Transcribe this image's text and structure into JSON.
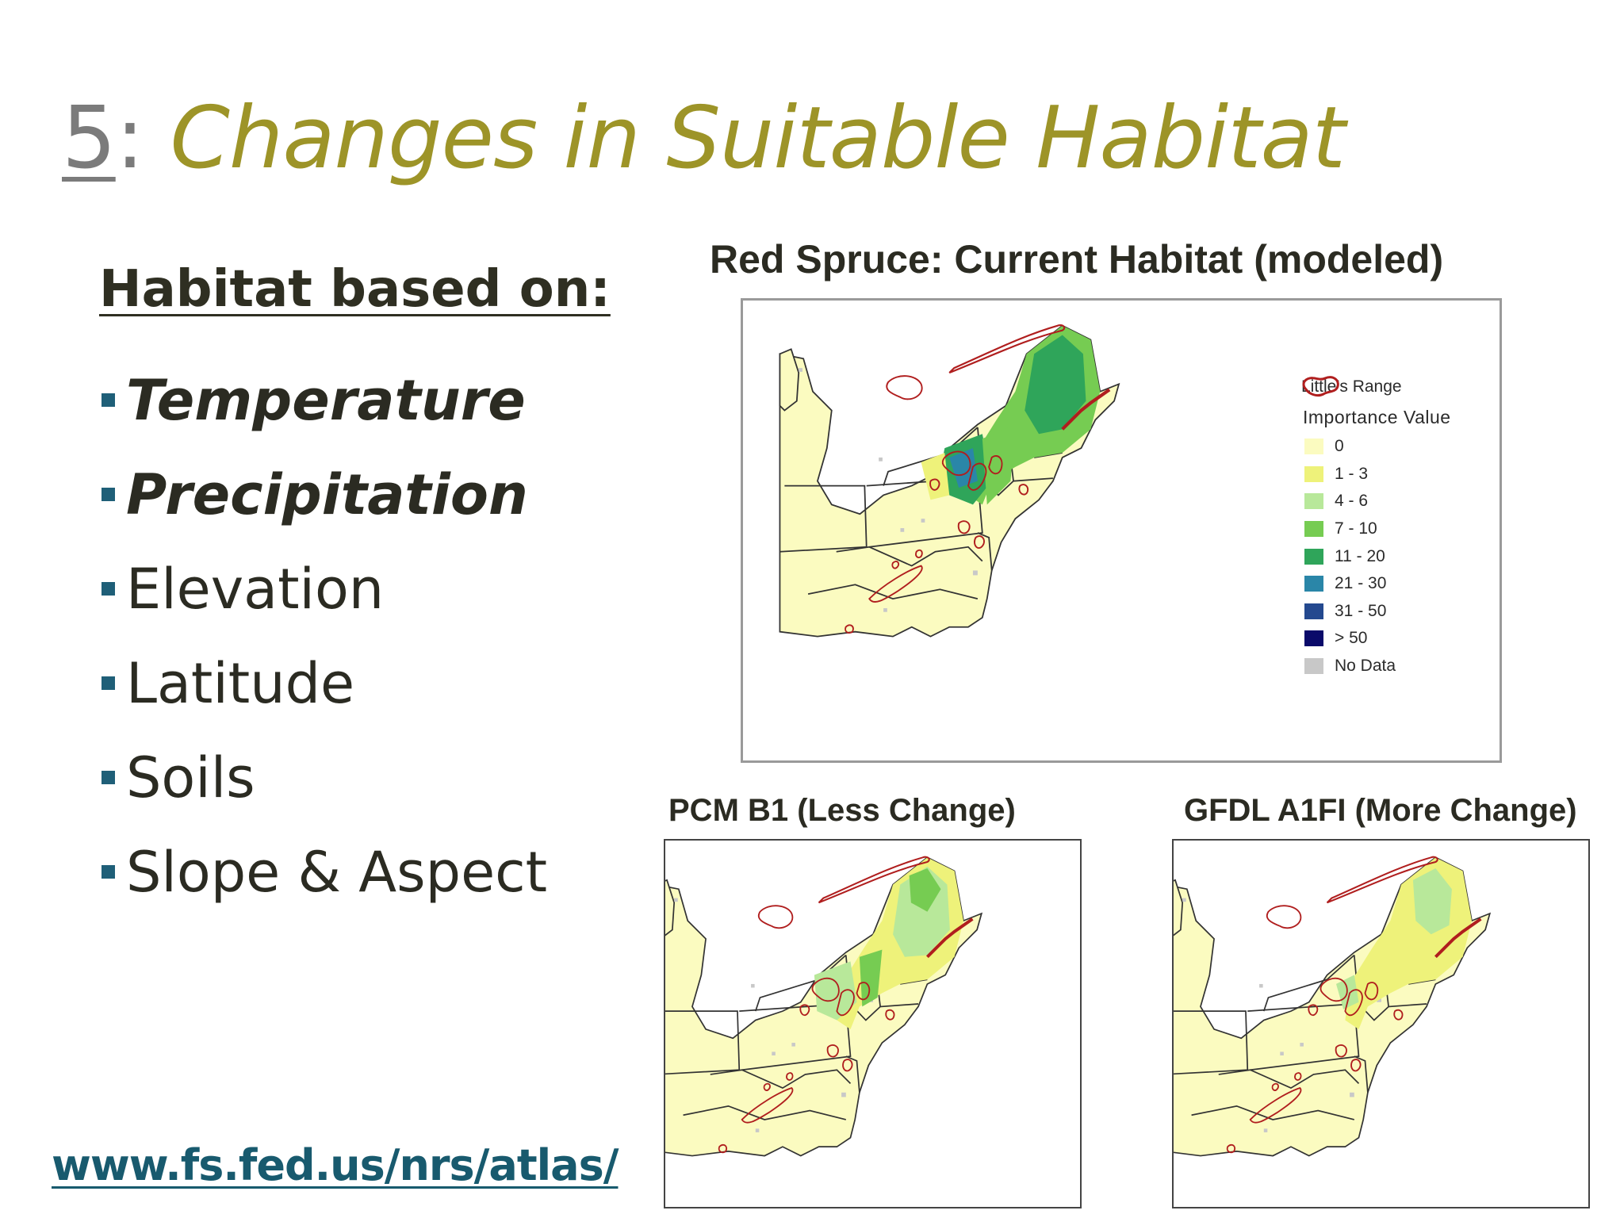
{
  "title": {
    "number": "5",
    "colon": ":",
    "text": "Changes in Suitable Habitat"
  },
  "left": {
    "heading": "Habitat based on:",
    "bullets": [
      {
        "label": "Temperature",
        "emphasis": true
      },
      {
        "label": "Precipitation",
        "emphasis": true
      },
      {
        "label": "Elevation",
        "emphasis": false
      },
      {
        "label": "Latitude",
        "emphasis": false
      },
      {
        "label": "Soils",
        "emphasis": false
      },
      {
        "label": "Slope & Aspect",
        "emphasis": false
      }
    ],
    "url": "www.fs.fed.us/nrs/atlas/"
  },
  "maps": {
    "current": {
      "caption": "Red Spruce: Current Habitat (modeled)",
      "ne_intensity": "high"
    },
    "pcm": {
      "caption": "PCM B1 (Less Change)",
      "ne_intensity": "medium"
    },
    "gfdl": {
      "caption": "GFDL A1FI (More Change)",
      "ne_intensity": "low"
    }
  },
  "legend": {
    "range_label": "Little's Range",
    "range_color": "#b01e1e",
    "heading": "Importance Value",
    "items": [
      {
        "label": "0",
        "color": "#fbfbc0"
      },
      {
        "label": "1 - 3",
        "color": "#eef27a"
      },
      {
        "label": "4 - 6",
        "color": "#b8e89a"
      },
      {
        "label": "7 - 10",
        "color": "#76cc52"
      },
      {
        "label": "11 - 20",
        "color": "#2fa55a"
      },
      {
        "label": "21 - 30",
        "color": "#2a86a8"
      },
      {
        "label": "31 - 50",
        "color": "#24498f"
      },
      {
        "label": "> 50",
        "color": "#0a0a6a"
      },
      {
        "label": "No Data",
        "color": "#c8c8c8"
      }
    ]
  },
  "colors": {
    "title_accent": "#9d9428",
    "title_number": "#7b7b7b",
    "bullet_marker": "#1f5f78",
    "url": "#185a6e",
    "map_land": "#fbfbc0",
    "state_border": "#333333"
  }
}
